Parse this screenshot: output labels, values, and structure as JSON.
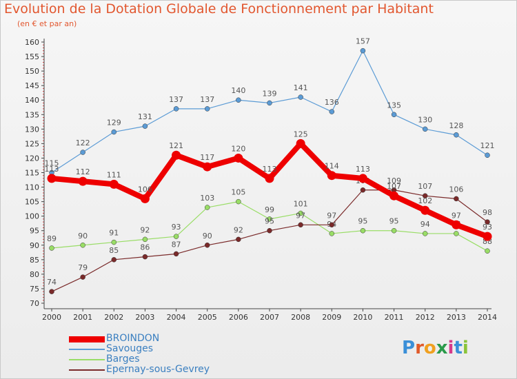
{
  "header": {
    "title": "Evolution de la Dotation Globale de Fonctionnement par Habitant",
    "subtitle": "(en € et par an)"
  },
  "logo": {
    "text": "Proxiti"
  },
  "chart_data": {
    "type": "line",
    "title": "Evolution de la Dotation Globale de Fonctionnement par Habitant",
    "subtitle": "(en € et par an)",
    "x": [
      "2000",
      "2001",
      "2002",
      "2003",
      "2004",
      "2005",
      "2006",
      "2007",
      "2008",
      "2009",
      "2010",
      "2011",
      "2012",
      "2013",
      "2014"
    ],
    "ylim": [
      70,
      160
    ],
    "yticks": [
      70,
      75,
      80,
      85,
      90,
      95,
      100,
      105,
      110,
      115,
      120,
      125,
      130,
      135,
      140,
      145,
      150,
      155,
      160
    ],
    "grid": false,
    "legend_position": "bottom-left",
    "series": [
      {
        "name": "BROINDON",
        "color": "#ee0000",
        "emphasis": true,
        "values": [
          113,
          112,
          111,
          106,
          121,
          117,
          120,
          113,
          125,
          114,
          113,
          107,
          102,
          97,
          93
        ]
      },
      {
        "name": "Savouges",
        "color": "#5b9bd5",
        "values": [
          115,
          122,
          129,
          131,
          137,
          137,
          140,
          139,
          141,
          136,
          157,
          135,
          130,
          128,
          121
        ]
      },
      {
        "name": "Barges",
        "color": "#99dd66",
        "values": [
          89,
          90,
          91,
          92,
          93,
          103,
          105,
          99,
          101,
          94,
          95,
          95,
          94,
          94,
          88
        ]
      },
      {
        "name": "Epernay-sous-Gevrey",
        "color": "#7a2a2a",
        "values": [
          74,
          79,
          85,
          86,
          87,
          90,
          92,
          95,
          97,
          97,
          109,
          109,
          107,
          106,
          98
        ]
      }
    ]
  }
}
